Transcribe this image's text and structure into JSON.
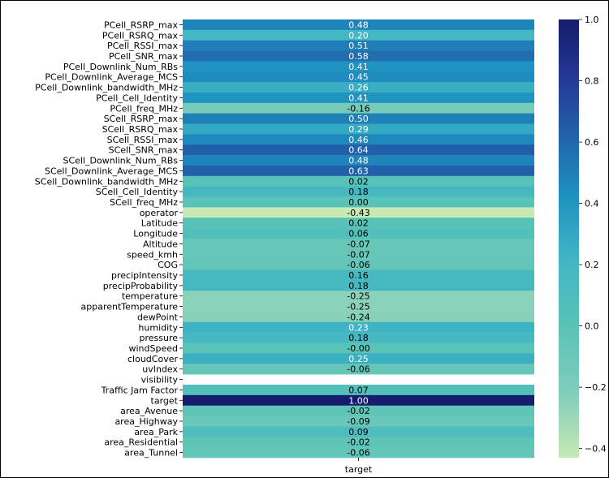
{
  "chart_data": {
    "type": "heatmap",
    "title": "",
    "xlabel": "",
    "ylabel": "",
    "x": [
      "target"
    ],
    "colormap": "YlGnBu",
    "colorbar": {
      "vmin": -0.43,
      "vmax": 1.0,
      "ticks": [
        1.0,
        0.8,
        0.6,
        0.4,
        0.2,
        0.0,
        -0.2,
        -0.4
      ],
      "tick_labels": [
        "1.0",
        "0.8",
        "0.6",
        "0.4",
        "0.2",
        "0.0",
        "−0.2",
        "−0.4"
      ]
    },
    "rows": [
      {
        "label": "PCell_RSRP_max",
        "value": 0.48,
        "text": "0.48"
      },
      {
        "label": "PCell_RSRQ_max",
        "value": 0.2,
        "text": "0.20"
      },
      {
        "label": "PCell_RSSI_max",
        "value": 0.51,
        "text": "0.51"
      },
      {
        "label": "PCell_SNR_max",
        "value": 0.58,
        "text": "0.58"
      },
      {
        "label": "PCell_Downlink_Num_RBs",
        "value": 0.41,
        "text": "0.41"
      },
      {
        "label": "PCell_Downlink_Average_MCS",
        "value": 0.45,
        "text": "0.45"
      },
      {
        "label": "PCell_Downlink_bandwidth_MHz",
        "value": 0.26,
        "text": "0.26"
      },
      {
        "label": "PCell_Cell_Identity",
        "value": 0.41,
        "text": "0.41"
      },
      {
        "label": "PCell_freq_MHz",
        "value": -0.16,
        "text": "-0.16"
      },
      {
        "label": "SCell_RSRP_max",
        "value": 0.5,
        "text": "0.50"
      },
      {
        "label": "SCell_RSRQ_max",
        "value": 0.29,
        "text": "0.29"
      },
      {
        "label": "SCell_RSSI_max",
        "value": 0.46,
        "text": "0.46"
      },
      {
        "label": "SCell_SNR_max",
        "value": 0.64,
        "text": "0.64"
      },
      {
        "label": "SCell_Downlink_Num_RBs",
        "value": 0.48,
        "text": "0.48"
      },
      {
        "label": "SCell_Downlink_Average_MCS",
        "value": 0.63,
        "text": "0.63"
      },
      {
        "label": "SCell_Downlink_bandwidth_MHz",
        "value": 0.02,
        "text": "0.02"
      },
      {
        "label": "SCell_Cell_Identity",
        "value": 0.18,
        "text": "0.18"
      },
      {
        "label": "SCell_freq_MHz",
        "value": 0.0,
        "text": "0.00"
      },
      {
        "label": "operator",
        "value": -0.43,
        "text": "-0.43"
      },
      {
        "label": "Latitude",
        "value": 0.02,
        "text": "0.02"
      },
      {
        "label": "Longitude",
        "value": 0.06,
        "text": "0.06"
      },
      {
        "label": "Altitude",
        "value": -0.07,
        "text": "-0.07"
      },
      {
        "label": "speed_kmh",
        "value": -0.07,
        "text": "-0.07"
      },
      {
        "label": "COG",
        "value": -0.06,
        "text": "-0.06"
      },
      {
        "label": "precipIntensity",
        "value": 0.16,
        "text": "0.16"
      },
      {
        "label": "precipProbability",
        "value": 0.18,
        "text": "0.18"
      },
      {
        "label": "temperature",
        "value": -0.25,
        "text": "-0.25"
      },
      {
        "label": "apparentTemperature",
        "value": -0.25,
        "text": "-0.25"
      },
      {
        "label": "dewPoint",
        "value": -0.24,
        "text": "-0.24"
      },
      {
        "label": "humidity",
        "value": 0.23,
        "text": "0.23"
      },
      {
        "label": "pressure",
        "value": 0.18,
        "text": "0.18"
      },
      {
        "label": "windSpeed",
        "value": -0.0,
        "text": "-0.00"
      },
      {
        "label": "cloudCover",
        "value": 0.25,
        "text": "0.25"
      },
      {
        "label": "uvIndex",
        "value": -0.06,
        "text": "-0.06"
      },
      {
        "label": "visibility",
        "value": null,
        "text": ""
      },
      {
        "label": "Traffic Jam Factor",
        "value": 0.07,
        "text": "0.07"
      },
      {
        "label": "target",
        "value": 1.0,
        "text": "1.00"
      },
      {
        "label": "area_Avenue",
        "value": -0.02,
        "text": "-0.02"
      },
      {
        "label": "area_Highway",
        "value": -0.09,
        "text": "-0.09"
      },
      {
        "label": "area_Park",
        "value": 0.09,
        "text": "0.09"
      },
      {
        "label": "area_Residential",
        "value": -0.02,
        "text": "-0.02"
      },
      {
        "label": "area_Tunnel",
        "value": -0.06,
        "text": "-0.06"
      }
    ]
  }
}
